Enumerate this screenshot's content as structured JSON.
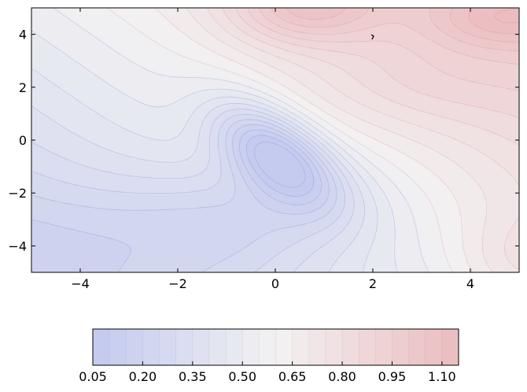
{
  "chart_data": {
    "type": "contour",
    "title": "",
    "xlabel": "",
    "ylabel": "",
    "xlim": [
      -5,
      5
    ],
    "ylim": [
      -5,
      5
    ],
    "grid": false,
    "colormap": "coolwarm",
    "colormap_range": [
      0.05,
      1.15
    ],
    "x_ticks": [
      -4,
      -2,
      0,
      2,
      4
    ],
    "x_tick_labels": [
      "−4",
      "−2",
      "0",
      "2",
      "4"
    ],
    "y_ticks": [
      4,
      2,
      0,
      -2,
      -4
    ],
    "y_tick_labels": [
      "4",
      "2",
      "0",
      "−2",
      "−4"
    ],
    "contour_levels": [
      0.05,
      0.1,
      0.15,
      0.2,
      0.25,
      0.3,
      0.35,
      0.4,
      0.45,
      0.5,
      0.55,
      0.6,
      0.65,
      0.7,
      0.75,
      0.8,
      0.85,
      0.9,
      0.95,
      1.0,
      1.05,
      1.1,
      1.15
    ],
    "colorbar": {
      "orientation": "horizontal",
      "placement": "bottom",
      "ticks": [
        0.05,
        0.2,
        0.35,
        0.5,
        0.65,
        0.8,
        0.95,
        1.1
      ],
      "tick_labels": [
        "0.05",
        "0.20",
        "0.35",
        "0.50",
        "0.65",
        "0.80",
        "0.95",
        "1.10"
      ]
    },
    "field_features": [
      {
        "kind": "minimum",
        "x": 0.0,
        "y": -0.5,
        "value": 0.05
      },
      {
        "kind": "maximum",
        "x": 0.5,
        "y": 4.9,
        "value": 1.12
      },
      {
        "kind": "maximum",
        "x": 4.5,
        "y": 4.5,
        "value": 1.05
      },
      {
        "kind": "maximum",
        "x": 4.9,
        "y": -4.5,
        "value": 0.93
      }
    ],
    "colors": {
      "low": "#c3c9ee",
      "mid": "#f2f2f2",
      "high": "#ebbcc0"
    }
  }
}
